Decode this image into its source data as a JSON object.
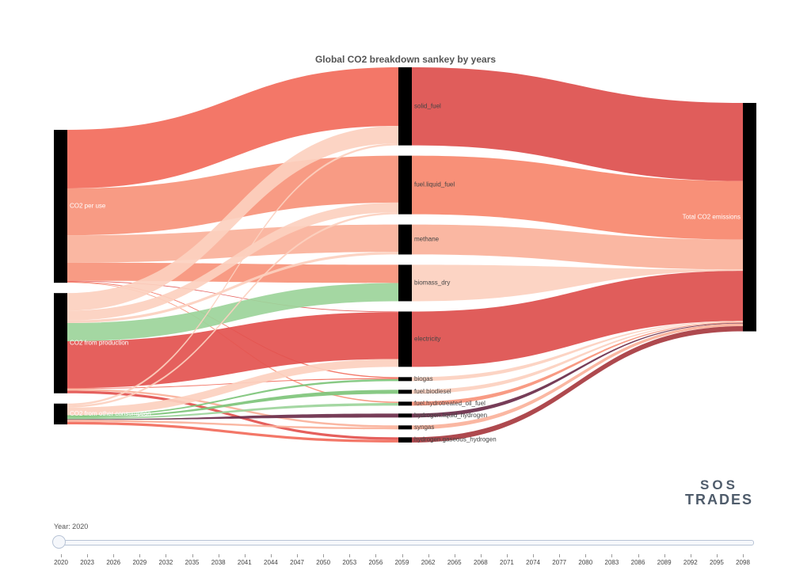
{
  "chart_data": {
    "type": "sankey",
    "title": "Global CO2 breakdown sankey by years",
    "nodes": [
      {
        "id": "co2_per_use",
        "label": "CO2 per use"
      },
      {
        "id": "co2_production",
        "label": "CO2 from production"
      },
      {
        "id": "co2_other",
        "label": "CO2 from other consumption"
      },
      {
        "id": "solid_fuel",
        "label": "solid_fuel"
      },
      {
        "id": "liquid_fuel",
        "label": "fuel.liquid_fuel"
      },
      {
        "id": "methane",
        "label": "methane"
      },
      {
        "id": "biomass_dry",
        "label": "biomass_dry"
      },
      {
        "id": "electricity",
        "label": "electricity"
      },
      {
        "id": "biogas",
        "label": "biogas"
      },
      {
        "id": "biodiesel",
        "label": "fuel.biodiesel"
      },
      {
        "id": "hydrotreated",
        "label": "fuel.hydrotreated_oil_fuel"
      },
      {
        "id": "liquid_hydrogen",
        "label": "hydrogen.liquid_hydrogen"
      },
      {
        "id": "syngas",
        "label": "syngas"
      },
      {
        "id": "gaseous_hydrogen",
        "label": "hydrogen.gaseous_hydrogen"
      },
      {
        "id": "total",
        "label": "Total CO2 emissions"
      }
    ],
    "links": [
      {
        "source": "co2_per_use",
        "target": "solid_fuel",
        "value": 90,
        "color": "#f26b5b"
      },
      {
        "source": "co2_per_use",
        "target": "liquid_fuel",
        "value": 72,
        "color": "#f7937a"
      },
      {
        "source": "co2_per_use",
        "target": "methane",
        "value": 42,
        "color": "#fab19a"
      },
      {
        "source": "co2_per_use",
        "target": "biomass_dry",
        "value": 28,
        "color": "#f7937a"
      },
      {
        "source": "co2_per_use",
        "target": "electricity",
        "value": 1,
        "color": "#e3534f"
      },
      {
        "source": "co2_per_use",
        "target": "biogas",
        "value": 1,
        "color": "#f26b5b"
      },
      {
        "source": "co2_per_use",
        "target": "hydrotreated",
        "value": 1,
        "color": "#f7937a"
      },
      {
        "source": "co2_production",
        "target": "solid_fuel",
        "value": 27,
        "color": "#fcd0bf"
      },
      {
        "source": "co2_production",
        "target": "liquid_fuel",
        "value": 15,
        "color": "#fcd0bf"
      },
      {
        "source": "co2_production",
        "target": "methane",
        "value": 4,
        "color": "#fcd0bf"
      },
      {
        "source": "co2_production",
        "target": "biomass_dry",
        "value": 28,
        "color": "#9cd49a"
      },
      {
        "source": "co2_production",
        "target": "electricity",
        "value": 72,
        "color": "#e3534f"
      },
      {
        "source": "co2_production",
        "target": "biogas",
        "value": 1,
        "color": "#f26b5b"
      },
      {
        "source": "co2_production",
        "target": "syngas",
        "value": 3,
        "color": "#fab19a"
      },
      {
        "source": "co2_production",
        "target": "gaseous_hydrogen",
        "value": 4,
        "color": "#e3534f"
      },
      {
        "source": "co2_other",
        "target": "solid_fuel",
        "value": 3,
        "color": "#fcd0bf"
      },
      {
        "source": "co2_other",
        "target": "liquid_fuel",
        "value": 3,
        "color": "#fcd0bf"
      },
      {
        "source": "co2_other",
        "target": "electricity",
        "value": 12,
        "color": "#fcd0bf"
      },
      {
        "source": "co2_other",
        "target": "biogas",
        "value": 2,
        "color": "#7ec47a"
      },
      {
        "source": "co2_other",
        "target": "biodiesel",
        "value": 2,
        "color": "#7ec47a"
      },
      {
        "source": "co2_other",
        "target": "hydrotreated",
        "value": 2,
        "color": "#9cd49a"
      },
      {
        "source": "co2_other",
        "target": "liquid_hydrogen",
        "value": 1,
        "color": "#6b2d4a"
      },
      {
        "source": "co2_other",
        "target": "syngas",
        "value": 3,
        "color": "#fab19a"
      },
      {
        "source": "co2_other",
        "target": "gaseous_hydrogen",
        "value": 4,
        "color": "#f26b5b"
      },
      {
        "source": "solid_fuel",
        "target": "total",
        "value": 120,
        "color": "#dd4f4d"
      },
      {
        "source": "liquid_fuel",
        "target": "total",
        "value": 90,
        "color": "#f7876d"
      },
      {
        "source": "methane",
        "target": "total",
        "value": 46,
        "color": "#fab19a"
      },
      {
        "source": "biomass_dry",
        "target": "total",
        "value": 2,
        "color": "#fcd0bf"
      },
      {
        "source": "electricity",
        "target": "total",
        "value": 77,
        "color": "#dd4f4d"
      },
      {
        "source": "biogas",
        "target": "total",
        "value": 1,
        "color": "#fcd0bf"
      },
      {
        "source": "biodiesel",
        "target": "total",
        "value": 1,
        "color": "#fcd0bf"
      },
      {
        "source": "hydrotreated",
        "target": "total",
        "value": 1,
        "color": "#f7937a"
      },
      {
        "source": "liquid_hydrogen",
        "target": "total",
        "value": 1,
        "color": "#6b2d4a"
      },
      {
        "source": "syngas",
        "target": "total",
        "value": 4,
        "color": "#fab19a"
      },
      {
        "source": "gaseous_hydrogen",
        "target": "total",
        "value": 8,
        "color": "#a73a3f"
      }
    ]
  },
  "slider": {
    "current_label": "Year: 2020",
    "ticks": [
      "2020",
      "2023",
      "2026",
      "2029",
      "2032",
      "2035",
      "2038",
      "2041",
      "2044",
      "2047",
      "2050",
      "2053",
      "2056",
      "2059",
      "2062",
      "2065",
      "2068",
      "2071",
      "2074",
      "2077",
      "2080",
      "2083",
      "2086",
      "2089",
      "2092",
      "2095",
      "2098"
    ]
  },
  "logo": {
    "top": "SOS",
    "bottom": "TRADES"
  }
}
